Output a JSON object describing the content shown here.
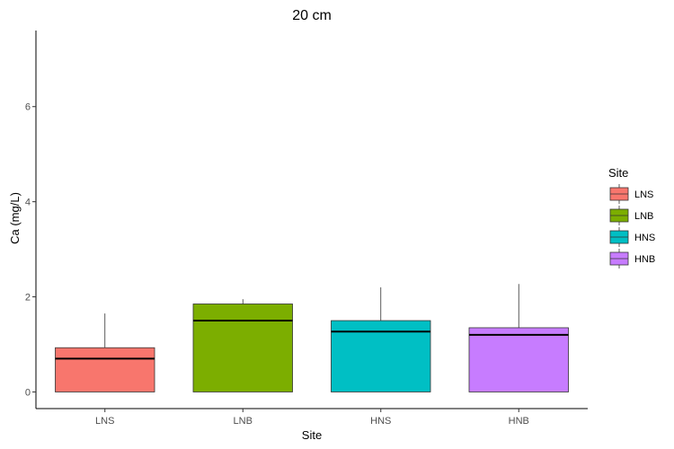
{
  "chart_data": {
    "type": "boxplot",
    "title": "20 cm",
    "xlabel": "Site",
    "ylabel": "Ca (mg/L)",
    "ylim": [
      -0.35,
      7.6
    ],
    "yticks": [
      0,
      2,
      4,
      6
    ],
    "grid": false,
    "legend": {
      "title": "Site",
      "placement": "right",
      "entries": [
        "LNS",
        "LNB",
        "HNS",
        "HNB"
      ]
    },
    "categories": [
      "LNS",
      "LNB",
      "HNS",
      "HNB"
    ],
    "series": [
      {
        "name": "LNS",
        "color": "#F8766D",
        "min": 0,
        "q1": 0,
        "median": 0.7,
        "q3": 0.93,
        "max": 1.65
      },
      {
        "name": "LNB",
        "color": "#7CAE00",
        "min": 0,
        "q1": 0,
        "median": 1.5,
        "q3": 1.85,
        "max": 1.95
      },
      {
        "name": "HNS",
        "color": "#00BFC4",
        "min": 0,
        "q1": 0,
        "median": 1.27,
        "q3": 1.5,
        "max": 2.2
      },
      {
        "name": "HNB",
        "color": "#C77CFF",
        "min": 0,
        "q1": 0,
        "median": 1.2,
        "q3": 1.35,
        "max": 2.27
      }
    ]
  }
}
